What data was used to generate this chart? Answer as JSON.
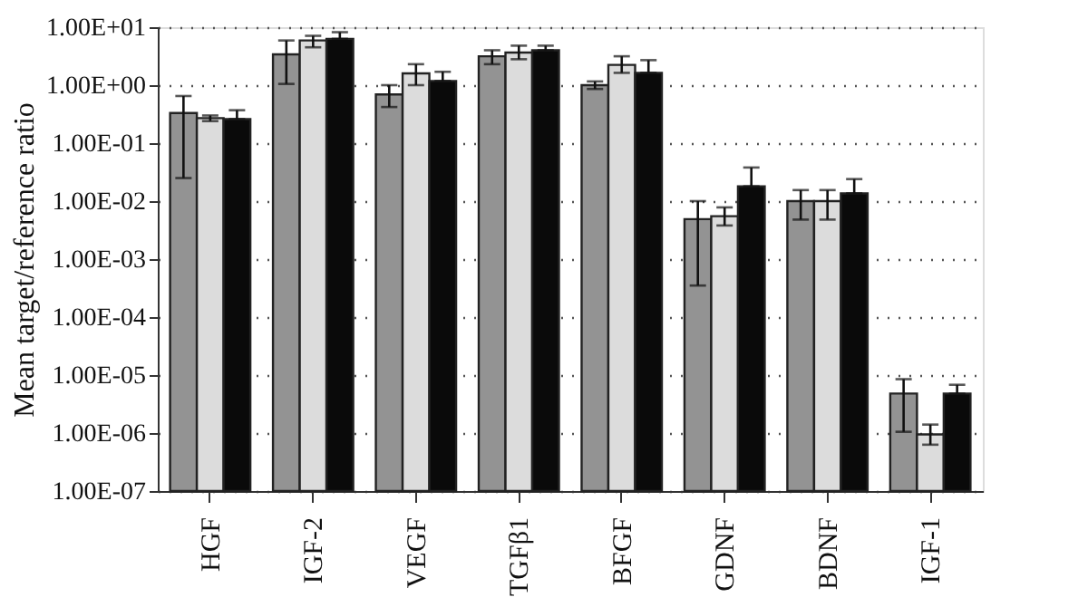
{
  "chart_data": {
    "type": "bar",
    "ylabel": "Mean target/reference ratio",
    "log": "y",
    "grid": "y",
    "line_style": "dotted",
    "categories": [
      "HGF",
      "IGF-2",
      "VEGF",
      "TGFβ1",
      "BFGF",
      "GDNF",
      "BDNF",
      "IGF-1"
    ],
    "ylim": [
      1e-07,
      10
    ],
    "yticks": [
      {
        "value": 10,
        "label": "1.00E+01"
      },
      {
        "value": 1,
        "label": "1.00E+00"
      },
      {
        "value": 0.1,
        "label": "1.00E-01"
      },
      {
        "value": 0.01,
        "label": "1.00E-02"
      },
      {
        "value": 0.001,
        "label": "1.00E-03"
      },
      {
        "value": 0.0001,
        "label": "1.00E-04"
      },
      {
        "value": 1e-05,
        "label": "1.00E-05"
      },
      {
        "value": 1e-06,
        "label": "1.00E-06"
      },
      {
        "value": 1e-07,
        "label": "1.00E-07"
      }
    ],
    "series": [
      {
        "color": "#939393",
        "values": [
          0.33,
          3.4,
          0.69,
          3.15,
          1.0,
          0.0049,
          0.01,
          4.8e-06
        ],
        "errors": [
          [
            0.025,
            0.65
          ],
          [
            1.05,
            5.9
          ],
          [
            0.42,
            1.0
          ],
          [
            2.3,
            4.0
          ],
          [
            0.86,
            1.16
          ],
          [
            0.00035,
            0.01
          ],
          [
            0.0048,
            0.0155
          ],
          [
            1.05e-06,
            8.5e-06
          ]
        ]
      },
      {
        "color": "#dcdcdc",
        "values": [
          0.27,
          5.9,
          1.6,
          3.65,
          2.24,
          0.0055,
          0.01,
          9.5e-07
        ],
        "errors": [
          [
            0.24,
            0.3
          ],
          [
            4.5,
            7.1
          ],
          [
            1.0,
            2.3
          ],
          [
            2.8,
            4.8
          ],
          [
            1.63,
            3.15
          ],
          [
            0.0038,
            0.0078
          ],
          [
            0.0048,
            0.0155
          ],
          [
            6.3e-07,
            1.4e-06
          ]
        ]
      },
      {
        "color": "#0a0a0a",
        "values": [
          0.26,
          6.3,
          1.18,
          4.0,
          1.63,
          0.018,
          0.0136,
          4.8e-06
        ],
        "errors": [
          [
            0.26,
            0.37
          ],
          [
            6.3,
            8.2
          ],
          [
            1.18,
            1.7
          ],
          [
            4.0,
            4.8
          ],
          [
            1.63,
            2.7
          ],
          [
            0.018,
            0.038
          ],
          [
            0.0136,
            0.024
          ],
          [
            4.8e-06,
            6.8e-06
          ]
        ]
      }
    ]
  }
}
